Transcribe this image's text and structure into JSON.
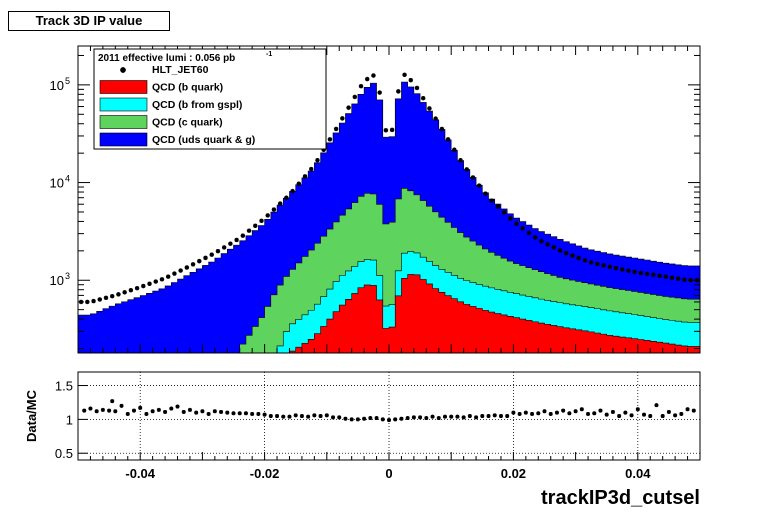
{
  "page_title": "Track 3D IP value",
  "colors": {
    "b_quark": "#ff0000",
    "b_from_gspl": "#00ffff",
    "c_quark": "#5ed35e",
    "uds": "#0000ff",
    "data": "#000000"
  },
  "chart_data": [
    {
      "type": "area",
      "subtype": "stacked-histogram-with-data-points",
      "xlim": [
        -0.05,
        0.05
      ],
      "yscale": "log",
      "ylim": [
        180,
        250000
      ],
      "ytick_labels": [
        "10",
        "3",
        "10",
        "4",
        "10",
        "5"
      ],
      "ytick_values": [
        1000,
        10000,
        100000
      ],
      "legend_header": "2011 effective lumi : 0.056  pb",
      "legend_header_sup": "-1",
      "legend_position": "top-left",
      "series": [
        {
          "name": "HLT_JET60",
          "style": "markers",
          "color": "#000000",
          "x": [
            -0.048,
            -0.044,
            -0.04,
            -0.036,
            -0.032,
            -0.028,
            -0.024,
            -0.02,
            -0.016,
            -0.012,
            -0.008,
            -0.004,
            -0.002,
            0.0,
            0.002,
            0.004,
            0.008,
            0.012,
            0.016,
            0.02,
            0.024,
            0.028,
            0.032,
            0.036,
            0.04,
            0.044,
            0.048
          ],
          "values": [
            600,
            700,
            850,
            1050,
            1400,
            1900,
            2700,
            4300,
            7500,
            15000,
            40000,
            110000,
            130000,
            22000,
            135000,
            105000,
            40000,
            15000,
            7000,
            4000,
            2600,
            1950,
            1550,
            1350,
            1200,
            1100,
            1000
          ]
        },
        {
          "name": "QCD (b quark)",
          "style": "fill",
          "color": "#ff0000",
          "x": [
            -0.048,
            -0.044,
            -0.04,
            -0.036,
            -0.032,
            -0.028,
            -0.024,
            -0.02,
            -0.016,
            -0.012,
            -0.008,
            -0.004,
            -0.002,
            0.0,
            0.002,
            0.004,
            0.008,
            0.012,
            0.016,
            0.02,
            0.024,
            0.028,
            0.032,
            0.036,
            0.04,
            0.044,
            0.048
          ],
          "values": [
            0,
            0,
            0,
            0,
            0,
            0,
            0,
            0,
            180,
            260,
            520,
            900,
            880,
            230,
            1000,
            1200,
            780,
            580,
            480,
            420,
            370,
            330,
            300,
            270,
            250,
            230,
            210
          ]
        },
        {
          "name": "QCD (b from gspl)",
          "style": "fill",
          "color": "#00ffff",
          "x": [
            -0.048,
            -0.044,
            -0.04,
            -0.036,
            -0.032,
            -0.028,
            -0.024,
            -0.02,
            -0.016,
            -0.012,
            -0.008,
            -0.004,
            -0.002,
            0.0,
            0.002,
            0.004,
            0.008,
            0.012,
            0.016,
            0.02,
            0.024,
            0.028,
            0.032,
            0.036,
            0.04,
            0.044,
            0.048
          ],
          "values": [
            0,
            0,
            0,
            0,
            0,
            0,
            0,
            0,
            160,
            260,
            540,
            740,
            720,
            150,
            860,
            800,
            560,
            430,
            370,
            320,
            280,
            250,
            230,
            210,
            190,
            170,
            160
          ]
        },
        {
          "name": "QCD (c quark)",
          "style": "fill",
          "color": "#5ed35e",
          "x": [
            -0.048,
            -0.044,
            -0.04,
            -0.036,
            -0.032,
            -0.028,
            -0.024,
            -0.02,
            -0.016,
            -0.012,
            -0.008,
            -0.004,
            -0.002,
            0.0,
            0.002,
            0.004,
            0.008,
            0.012,
            0.016,
            0.02,
            0.024,
            0.028,
            0.032,
            0.036,
            0.04,
            0.044,
            0.048
          ],
          "values": [
            0,
            0,
            0,
            0,
            0,
            0,
            200,
            460,
            860,
            1680,
            3240,
            6160,
            6000,
            2620,
            7140,
            6000,
            3360,
            1890,
            1150,
            780,
            600,
            470,
            400,
            350,
            320,
            290,
            270
          ]
        },
        {
          "name": "QCD (uds quark & g)",
          "style": "fill",
          "color": "#0000ff",
          "x": [
            -0.048,
            -0.044,
            -0.04,
            -0.036,
            -0.032,
            -0.028,
            -0.024,
            -0.02,
            -0.016,
            -0.012,
            -0.008,
            -0.004,
            -0.002,
            0.0,
            0.002,
            0.004,
            0.008,
            0.012,
            0.016,
            0.02,
            0.024,
            0.028,
            0.032,
            0.036,
            0.04,
            0.044,
            0.048
          ],
          "values": [
            440,
            560,
            680,
            840,
            1160,
            1600,
            2200,
            3400,
            6300,
            12000,
            32000,
            82000,
            102000,
            16000,
            104000,
            82000,
            35000,
            12000,
            5200,
            3000,
            2000,
            1500,
            1150,
            1000,
            910,
            820,
            760
          ]
        }
      ]
    },
    {
      "type": "scatter",
      "xlabel": "trackIP3d_cutsel",
      "ylabel": "Data/MC",
      "xlim": [
        -0.05,
        0.05
      ],
      "ylim": [
        0.4,
        1.7
      ],
      "x_tick_labels": [
        "-0.04",
        "-0.02",
        "0",
        "0.02",
        "0.04"
      ],
      "x_tick_values": [
        -0.04,
        -0.02,
        0,
        0.02,
        0.04
      ],
      "y_tick_labels": [
        "0.5",
        "1",
        "1.5"
      ],
      "y_tick_values": [
        0.5,
        1.0,
        1.5
      ],
      "grid": true,
      "series": [
        {
          "name": "",
          "x": [
            -0.049,
            -0.048,
            -0.047,
            -0.046,
            -0.045,
            -0.0445,
            -0.044,
            -0.043,
            -0.042,
            -0.041,
            -0.04,
            -0.039,
            -0.038,
            -0.037,
            -0.036,
            -0.035,
            -0.034,
            -0.033,
            -0.032,
            -0.031,
            -0.03,
            -0.029,
            -0.028,
            -0.027,
            -0.026,
            -0.025,
            -0.024,
            -0.023,
            -0.022,
            -0.021,
            -0.02,
            -0.019,
            -0.018,
            -0.017,
            -0.016,
            -0.015,
            -0.014,
            -0.013,
            -0.012,
            -0.011,
            -0.01,
            -0.009,
            -0.008,
            -0.007,
            -0.006,
            -0.005,
            -0.004,
            -0.003,
            -0.002,
            -0.001,
            0.0,
            0.001,
            0.002,
            0.003,
            0.004,
            0.005,
            0.006,
            0.007,
            0.008,
            0.009,
            0.01,
            0.011,
            0.012,
            0.013,
            0.014,
            0.015,
            0.016,
            0.017,
            0.018,
            0.019,
            0.02,
            0.021,
            0.022,
            0.023,
            0.024,
            0.025,
            0.026,
            0.027,
            0.028,
            0.029,
            0.03,
            0.031,
            0.032,
            0.033,
            0.034,
            0.035,
            0.036,
            0.037,
            0.038,
            0.039,
            0.04,
            0.041,
            0.042,
            0.043,
            0.044,
            0.045,
            0.046,
            0.047,
            0.048,
            0.049
          ],
          "values": [
            1.13,
            1.16,
            1.12,
            1.14,
            1.13,
            1.27,
            1.12,
            1.2,
            1.08,
            1.13,
            1.17,
            1.08,
            1.12,
            1.14,
            1.11,
            1.16,
            1.19,
            1.11,
            1.14,
            1.1,
            1.12,
            1.08,
            1.12,
            1.11,
            1.1,
            1.09,
            1.09,
            1.09,
            1.08,
            1.08,
            1.07,
            1.05,
            1.05,
            1.04,
            1.04,
            1.06,
            1.05,
            1.04,
            1.06,
            1.05,
            1.06,
            1.03,
            1.03,
            1.01,
            1.0,
            1.0,
            1.01,
            1.02,
            1.02,
            1.0,
            0.99,
            1.0,
            1.01,
            1.02,
            1.03,
            1.03,
            1.02,
            1.04,
            1.02,
            1.04,
            1.04,
            1.04,
            1.03,
            1.05,
            1.03,
            1.05,
            1.05,
            1.06,
            1.05,
            1.05,
            1.1,
            1.08,
            1.1,
            1.08,
            1.09,
            1.12,
            1.08,
            1.1,
            1.13,
            1.09,
            1.12,
            1.15,
            1.08,
            1.09,
            1.13,
            1.07,
            1.11,
            1.05,
            1.1,
            1.06,
            1.15,
            1.07,
            1.05,
            1.21,
            1.05,
            1.11,
            1.06,
            1.08,
            1.15,
            1.13
          ]
        }
      ]
    }
  ]
}
